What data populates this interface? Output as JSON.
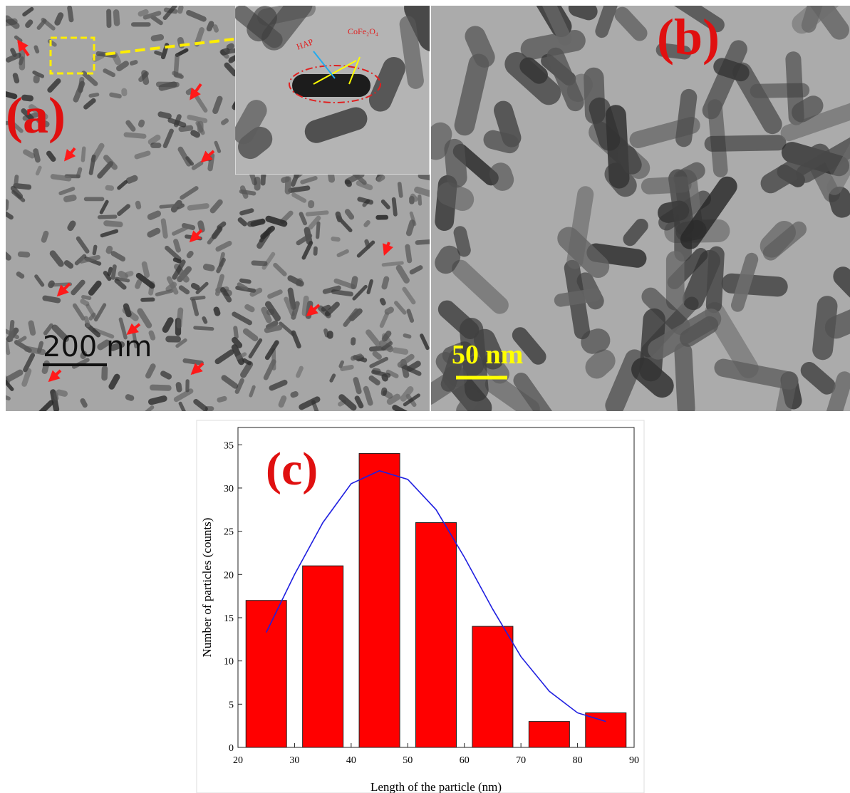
{
  "panels": {
    "a": {
      "label": "(a)",
      "scale_bar": "200 nm",
      "inset_labels": [
        "HAP",
        "CoFe₂O₄"
      ]
    },
    "b": {
      "label": "(b)",
      "scale_bar": "50 nm"
    }
  },
  "chart_data": {
    "type": "bar",
    "annotation": "(c)",
    "x_label": "Length of the particle (nm)",
    "y_label": "Number of particles (counts)",
    "x": [
      25,
      35,
      45,
      55,
      65,
      75,
      85
    ],
    "values": [
      17,
      21,
      34,
      26,
      14,
      3,
      4
    ],
    "color": "#ff0000",
    "fit_curve": {
      "color": "#1f1fe0",
      "x": [
        25,
        30,
        35,
        40,
        45,
        50,
        55,
        60,
        65,
        70,
        75,
        80,
        85
      ],
      "values": [
        13.3,
        20,
        26,
        30.5,
        32,
        31,
        27.5,
        22,
        16,
        10.5,
        6.5,
        4,
        3
      ]
    },
    "xlim": [
      20,
      90
    ],
    "xticks": [
      20,
      30,
      40,
      50,
      60,
      70,
      80,
      90
    ],
    "ylim": [
      0,
      37
    ],
    "yticks": [
      0,
      5,
      10,
      15,
      20,
      25,
      30,
      35
    ]
  }
}
